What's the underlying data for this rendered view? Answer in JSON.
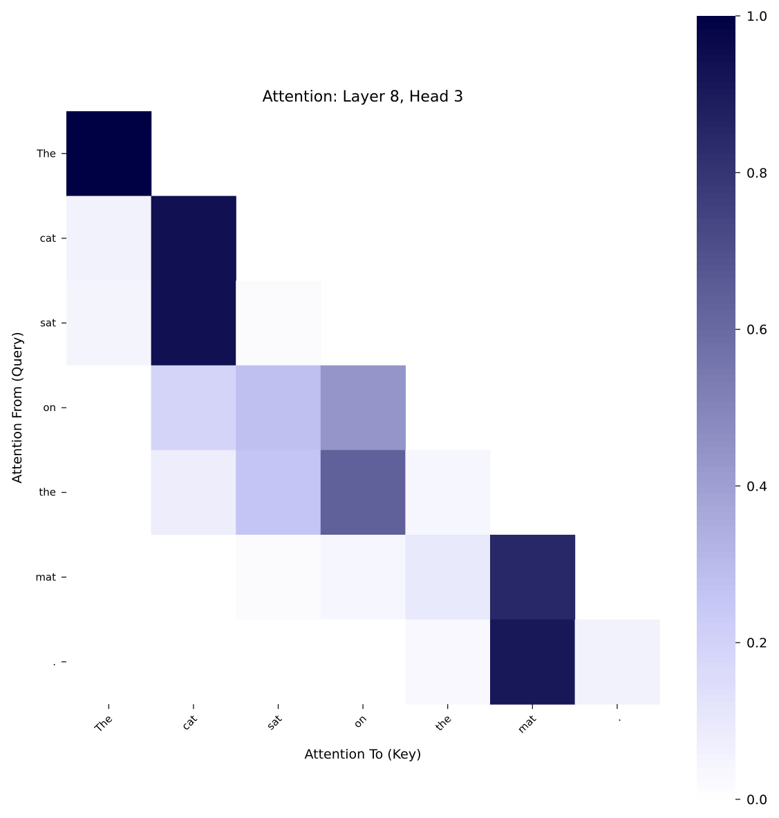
{
  "chart_data": {
    "type": "heatmap",
    "title": "Attention: Layer 8, Head 3",
    "xlabel": "Attention To (Key)",
    "ylabel": "Attention From (Query)",
    "x_categories": [
      "The",
      "cat",
      "sat",
      "on",
      "the",
      "mat",
      "."
    ],
    "y_categories": [
      "The",
      "cat",
      "sat",
      "on",
      "the",
      "mat",
      "."
    ],
    "values": [
      [
        1.0,
        0.0,
        0.0,
        0.0,
        0.0,
        0.0,
        0.0
      ],
      [
        0.06,
        0.94,
        0.0,
        0.0,
        0.0,
        0.0,
        0.0
      ],
      [
        0.05,
        0.94,
        0.02,
        0.0,
        0.0,
        0.0,
        0.0
      ],
      [
        0.0,
        0.19,
        0.28,
        0.44,
        0.0,
        0.0,
        0.0
      ],
      [
        0.0,
        0.08,
        0.26,
        0.64,
        0.04,
        0.0,
        0.0
      ],
      [
        0.0,
        0.0,
        0.02,
        0.04,
        0.1,
        0.85,
        0.0
      ],
      [
        0.0,
        0.0,
        0.0,
        0.0,
        0.03,
        0.91,
        0.06
      ]
    ],
    "mask": "upper-triangle",
    "colorbar": {
      "min": 0.0,
      "max": 1.0,
      "ticks": [
        "0.0",
        "0.2",
        "0.4",
        "0.6",
        "0.8",
        "1.0"
      ],
      "color_low": "#ffffff",
      "color_mid": "#c7c7f7",
      "color_high": "#000044"
    },
    "legend": "colorbar-right",
    "grid": false
  }
}
